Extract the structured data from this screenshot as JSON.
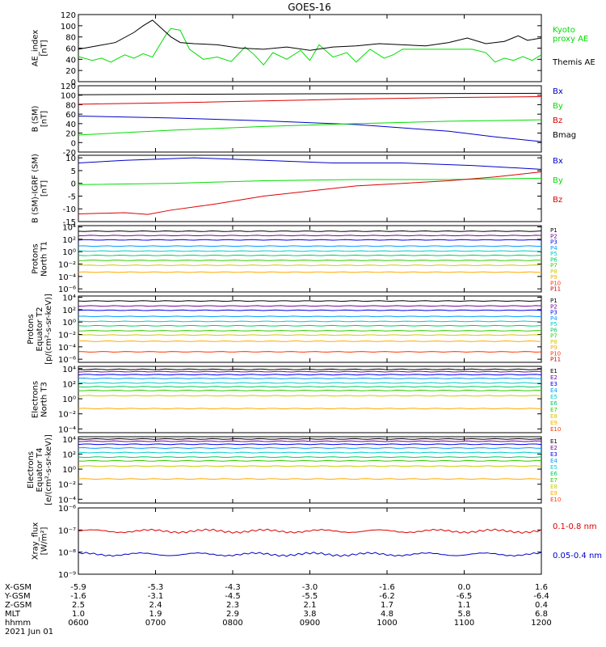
{
  "chart_data": {
    "type": "line",
    "title": "GOES-16",
    "colors": {
      "black": "#000000",
      "green": "#00dd00",
      "blue": "#0000cc",
      "red": "#dd0000",
      "ch": [
        "#000000",
        "#7a0099",
        "#0000ee",
        "#0099ff",
        "#00cccc",
        "#00cc66",
        "#33cc00",
        "#cccc00",
        "#ffaa00",
        "#ff3300",
        "#cc0000"
      ]
    },
    "x_axis": {
      "rows": [
        {
          "label": "X-GSM",
          "values": [
            "-5.9",
            "-5.3",
            "-4.3",
            "-3.0",
            "-1.6",
            "0.0",
            "1.6"
          ]
        },
        {
          "label": "Y-GSM",
          "values": [
            "-1.6",
            "-3.1",
            "-4.5",
            "-5.5",
            "-6.2",
            "-6.5",
            "-6.4"
          ]
        },
        {
          "label": "Z-GSM",
          "values": [
            "2.5",
            "2.4",
            "2.3",
            "2.1",
            "1.7",
            "1.1",
            "0.4"
          ]
        },
        {
          "label": "MLT",
          "values": [
            "1.0",
            "1.9",
            "2.9",
            "3.8",
            "4.8",
            "5.8",
            "6.8"
          ]
        },
        {
          "label": "hhmm",
          "values": [
            "0600",
            "0700",
            "0800",
            "0900",
            "1000",
            "1100",
            "1200"
          ]
        }
      ],
      "date": "2021 Jun 01"
    },
    "panels": [
      {
        "id": "ae",
        "ylabel": [
          "AE_index",
          "[nT]"
        ],
        "ticks": [
          "0",
          "20",
          "40",
          "60",
          "80",
          "100",
          "120"
        ],
        "ylim": [
          0,
          120
        ],
        "series": [
          {
            "name": "Kyoto proxy AE",
            "label_lines": [
              "Kyoto",
              "proxy AE"
            ],
            "color": "green",
            "x": [
              0,
              0.03,
              0.05,
              0.07,
              0.1,
              0.12,
              0.14,
              0.16,
              0.19,
              0.2,
              0.22,
              0.24,
              0.27,
              0.3,
              0.33,
              0.36,
              0.38,
              0.4,
              0.42,
              0.45,
              0.48,
              0.5,
              0.52,
              0.55,
              0.58,
              0.6,
              0.63,
              0.66,
              0.68,
              0.7,
              0.73,
              0.76,
              0.79,
              0.82,
              0.85,
              0.88,
              0.9,
              0.92,
              0.94,
              0.96,
              0.98,
              1
            ],
            "y": [
              45,
              38,
              42,
              35,
              48,
              42,
              50,
              44,
              85,
              95,
              92,
              58,
              40,
              44,
              36,
              62,
              48,
              30,
              52,
              40,
              56,
              38,
              66,
              44,
              52,
              35,
              58,
              42,
              48,
              58,
              58,
              58,
              58,
              58,
              58,
              52,
              35,
              42,
              38,
              45,
              38,
              48
            ]
          },
          {
            "name": "Themis AE",
            "label_lines": [
              "Themis AE"
            ],
            "color": "black",
            "x": [
              0,
              0.04,
              0.08,
              0.12,
              0.14,
              0.16,
              0.18,
              0.2,
              0.22,
              0.25,
              0.3,
              0.35,
              0.4,
              0.45,
              0.5,
              0.55,
              0.6,
              0.65,
              0.7,
              0.75,
              0.8,
              0.84,
              0.88,
              0.92,
              0.95,
              0.97,
              1
            ],
            "y": [
              58,
              64,
              70,
              88,
              100,
              110,
              95,
              80,
              70,
              68,
              66,
              60,
              58,
              62,
              56,
              62,
              64,
              68,
              66,
              64,
              70,
              78,
              68,
              72,
              82,
              74,
              78
            ]
          }
        ]
      },
      {
        "id": "b_sm",
        "ylabel": [
          "B (SM)",
          "[nT]"
        ],
        "ticks": [
          "-20",
          "0",
          "20",
          "40",
          "60",
          "80",
          "100",
          "120"
        ],
        "ylim": [
          -20,
          120
        ],
        "series": [
          {
            "name": "Bx",
            "color": "blue",
            "x": [
              0,
              0.2,
              0.4,
              0.6,
              0.8,
              0.9,
              1
            ],
            "y": [
              56,
              52,
              46,
              38,
              24,
              12,
              2
            ]
          },
          {
            "name": "By",
            "color": "green",
            "x": [
              0,
              0.2,
              0.4,
              0.6,
              0.8,
              1
            ],
            "y": [
              16,
              26,
              34,
              40,
              45,
              48
            ]
          },
          {
            "name": "Bz",
            "color": "red",
            "x": [
              0,
              0.2,
              0.4,
              0.6,
              0.8,
              1
            ],
            "y": [
              81,
              84,
              88,
              92,
              95,
              97
            ]
          },
          {
            "name": "Bmag",
            "color": "black",
            "x": [
              0,
              0.5,
              1
            ],
            "y": [
              101,
              103,
              104
            ]
          }
        ]
      },
      {
        "id": "b_igrf",
        "ylabel": [
          "B (SM)-IGRF (SM)",
          "[nT]"
        ],
        "ticks": [
          "-15",
          "-10",
          "-5",
          "0",
          "5",
          "10"
        ],
        "ylim": [
          -15,
          11
        ],
        "series": [
          {
            "name": "Bx",
            "color": "blue",
            "x": [
              0,
              0.1,
              0.25,
              0.4,
              0.55,
              0.7,
              0.85,
              1
            ],
            "y": [
              8,
              9,
              10,
              9,
              8,
              8,
              7,
              5.5
            ]
          },
          {
            "name": "By",
            "color": "green",
            "x": [
              0,
              0.2,
              0.4,
              0.6,
              0.8,
              1
            ],
            "y": [
              -0.5,
              0,
              1,
              1.5,
              1.5,
              2
            ]
          },
          {
            "name": "Bz",
            "color": "red",
            "x": [
              0,
              0.1,
              0.15,
              0.2,
              0.3,
              0.4,
              0.5,
              0.6,
              0.7,
              0.8,
              0.9,
              1
            ],
            "y": [
              -12,
              -11.5,
              -12.2,
              -10.5,
              -8,
              -5,
              -3,
              -1,
              0,
              1,
              2.5,
              4.5
            ]
          }
        ]
      },
      {
        "id": "protons_t1",
        "ylabel": [
          "Protons",
          "North T1"
        ],
        "ticks": [
          "10⁻⁶",
          "10⁻⁴",
          "10⁻²",
          "10⁰",
          "10²",
          "10⁴"
        ],
        "log": true,
        "ylim": [
          -6.5,
          4.2
        ],
        "channels": [
          "P1",
          "P2",
          "P3",
          "P4",
          "P5",
          "P6",
          "P7",
          "P8",
          "P9",
          "P10",
          "P11"
        ],
        "levels": [
          3.3,
          2.6,
          1.9,
          0.9,
          0.1,
          -0.6,
          -1.4,
          -2.2,
          -3.3,
          null,
          null
        ]
      },
      {
        "id": "protons_t2",
        "ylabel": [
          "Protons",
          "Equator T2",
          "[p/(cm²-s-sr-keV)]"
        ],
        "ticks": [
          "10⁻⁶",
          "10⁻⁴",
          "10⁻²",
          "10⁰",
          "10²",
          "10⁴"
        ],
        "log": true,
        "ylim": [
          -6.5,
          4.2
        ],
        "channels": [
          "P1",
          "P2",
          "P3",
          "P4",
          "P5",
          "P6",
          "P7",
          "P8",
          "P9",
          "P10",
          "P11"
        ],
        "levels": [
          3.4,
          2.6,
          1.9,
          0.9,
          0.1,
          -0.6,
          -1.4,
          -2.1,
          -3.1,
          -4.8,
          null
        ]
      },
      {
        "id": "electrons_t3",
        "ylabel": [
          "Electrons",
          "North T3"
        ],
        "ticks": [
          "10⁻⁴",
          "10⁻²",
          "10⁰",
          "10²",
          "10⁴"
        ],
        "log": true,
        "ylim": [
          -4.5,
          4.3
        ],
        "channels": [
          "E1",
          "E2",
          "E3",
          "E4",
          "E5",
          "E6",
          "E7",
          "E8",
          "E9",
          "E10"
        ],
        "levels": [
          3.9,
          3.6,
          3.2,
          2.7,
          2.1,
          1.6,
          1.1,
          0.4,
          -1.3,
          null
        ]
      },
      {
        "id": "electrons_t4",
        "ylabel": [
          "Electrons",
          "Equator T4",
          "[e/(cm²-s-sr-keV)]"
        ],
        "ticks": [
          "10⁻⁴",
          "10⁻²",
          "10⁰",
          "10²",
          "10⁴"
        ],
        "log": true,
        "ylim": [
          -4.5,
          4.3
        ],
        "channels": [
          "E1",
          "E2",
          "E3",
          "E4",
          "E5",
          "E6",
          "E7",
          "E8",
          "E9",
          "E10"
        ],
        "levels": [
          4.0,
          3.7,
          3.3,
          2.8,
          2.2,
          1.6,
          1.1,
          0.4,
          -1.3,
          null
        ]
      },
      {
        "id": "xray",
        "ylabel": [
          "Xray_flux",
          "[W/m²]"
        ],
        "ticks": [
          "10⁻⁹",
          "10⁻⁸",
          "10⁻⁷",
          "10⁻⁶"
        ],
        "log": true,
        "ylim": [
          -9,
          -6
        ],
        "series": [
          {
            "name": "0.1-0.8 nm",
            "color": "red",
            "level": -7.05
          },
          {
            "name": "0.05-0.4 nm",
            "color": "blue",
            "level": -8.1
          }
        ]
      }
    ]
  }
}
